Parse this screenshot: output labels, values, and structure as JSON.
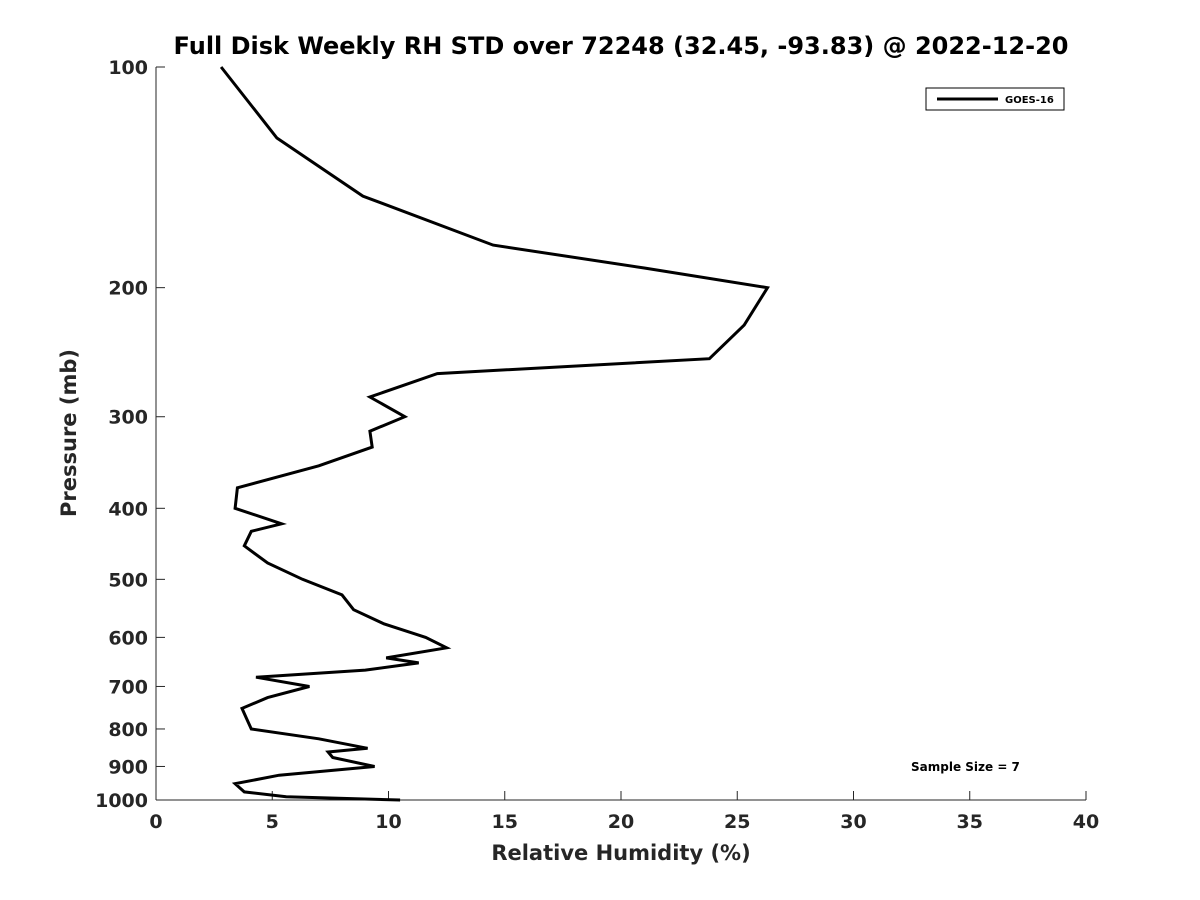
{
  "chart_data": {
    "type": "line",
    "title": "Full Disk Weekly RH STD over 72248 (32.45, -93.83) @ 2022-12-20",
    "xlabel": "Relative Humidity (%)",
    "ylabel": "Pressure (mb)",
    "xlim": [
      0,
      40
    ],
    "ylim": [
      1000,
      100
    ],
    "y_scale": "log",
    "y_reversed": true,
    "grid": false,
    "legend_position": "top-right",
    "x_ticks": [
      "0",
      "5",
      "10",
      "15",
      "20",
      "25",
      "30",
      "35",
      "40"
    ],
    "x_tick_values": [
      0,
      5,
      10,
      15,
      20,
      25,
      30,
      35,
      40
    ],
    "y_ticks": [
      "100",
      "200",
      "300",
      "400",
      "500",
      "600",
      "700",
      "800",
      "900",
      "1000"
    ],
    "y_tick_values": [
      100,
      200,
      300,
      400,
      500,
      600,
      700,
      800,
      900,
      1000
    ],
    "annotation": "Sample Size = 7",
    "series": [
      {
        "name": "GOES-16",
        "color": "#000000",
        "points": [
          [
            2.8,
            100
          ],
          [
            5.2,
            125
          ],
          [
            8.9,
            150
          ],
          [
            14.5,
            175
          ],
          [
            21.0,
            188
          ],
          [
            26.3,
            200
          ],
          [
            25.3,
            225
          ],
          [
            23.8,
            250
          ],
          [
            12.1,
            262
          ],
          [
            9.2,
            282
          ],
          [
            10.7,
            300
          ],
          [
            9.2,
            314
          ],
          [
            9.3,
            330
          ],
          [
            7.0,
            350
          ],
          [
            3.5,
            375
          ],
          [
            3.4,
            400
          ],
          [
            5.4,
            420
          ],
          [
            4.1,
            430
          ],
          [
            3.8,
            450
          ],
          [
            4.8,
            475
          ],
          [
            6.3,
            500
          ],
          [
            8.0,
            525
          ],
          [
            8.5,
            550
          ],
          [
            9.8,
            575
          ],
          [
            11.6,
            600
          ],
          [
            12.5,
            620
          ],
          [
            9.9,
            640
          ],
          [
            11.3,
            650
          ],
          [
            9.0,
            665
          ],
          [
            4.3,
            680
          ],
          [
            6.6,
            700
          ],
          [
            4.8,
            725
          ],
          [
            3.7,
            750
          ],
          [
            3.9,
            775
          ],
          [
            4.1,
            800
          ],
          [
            7.0,
            825
          ],
          [
            9.1,
            850
          ],
          [
            7.4,
            860
          ],
          [
            7.6,
            875
          ],
          [
            9.4,
            900
          ],
          [
            5.3,
            925
          ],
          [
            3.4,
            950
          ],
          [
            3.8,
            975
          ],
          [
            5.6,
            990
          ],
          [
            10.5,
            1000
          ]
        ]
      }
    ]
  }
}
